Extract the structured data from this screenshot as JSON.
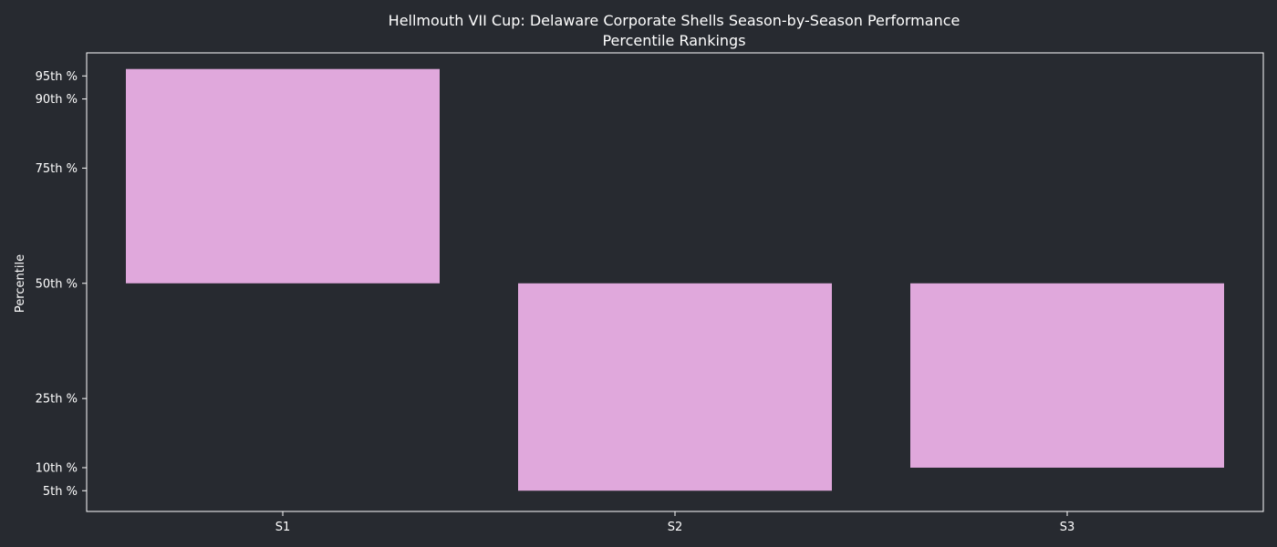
{
  "chart_data": {
    "type": "bar",
    "title": "Hellmouth VII Cup: Delaware Corporate Shells Season-by-Season Performance",
    "subtitle": "Percentile Rankings",
    "xlabel": "",
    "ylabel": "Percentile",
    "categories": [
      "S1",
      "S2",
      "S3"
    ],
    "bars": [
      {
        "category": "S1",
        "bottom": 50,
        "top": 96.5
      },
      {
        "category": "S2",
        "bottom": 5,
        "top": 50
      },
      {
        "category": "S3",
        "bottom": 10,
        "top": 50
      }
    ],
    "ylim": [
      0.5,
      100
    ],
    "yticks": [
      {
        "value": 5,
        "label": "5th %"
      },
      {
        "value": 10,
        "label": "10th %"
      },
      {
        "value": 25,
        "label": "25th %"
      },
      {
        "value": 50,
        "label": "50th %"
      },
      {
        "value": 75,
        "label": "75th %"
      },
      {
        "value": 90,
        "label": "90th %"
      },
      {
        "value": 95,
        "label": "95th %"
      }
    ],
    "grid": false,
    "legend": "none",
    "colors": {
      "background": "#272a30",
      "bar": "#e0a8dc",
      "axis": "#ffffff",
      "text": "#ffffff"
    }
  }
}
